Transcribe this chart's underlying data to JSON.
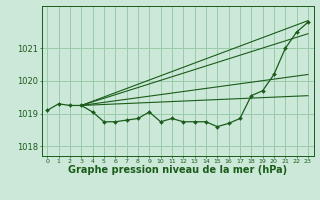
{
  "bg_color": "#cce8d8",
  "grid_color": "#99ccaa",
  "line_color": "#1a5c1a",
  "marker_color": "#1a5c1a",
  "xlabel": "Graphe pression niveau de la mer (hPa)",
  "xlabel_fontsize": 7.0,
  "xlabel_color": "#1a5c1a",
  "xlim": [
    -0.5,
    23.5
  ],
  "ylim": [
    1017.7,
    1022.3
  ],
  "yticks": [
    1018,
    1019,
    1020,
    1021
  ],
  "xtick_labels": [
    "0",
    "1",
    "2",
    "3",
    "4",
    "5",
    "6",
    "7",
    "8",
    "9",
    "10",
    "11",
    "12",
    "13",
    "14",
    "15",
    "16",
    "17",
    "18",
    "19",
    "20",
    "21",
    "22",
    "23"
  ],
  "xticks": [
    0,
    1,
    2,
    3,
    4,
    5,
    6,
    7,
    8,
    9,
    10,
    11,
    12,
    13,
    14,
    15,
    16,
    17,
    18,
    19,
    20,
    21,
    22,
    23
  ],
  "main_x": [
    0,
    1,
    2,
    3,
    4,
    5,
    6,
    7,
    8,
    9,
    10,
    11,
    12,
    13,
    14,
    15,
    16,
    17,
    18,
    19,
    20,
    21,
    22,
    23
  ],
  "main_y": [
    1019.1,
    1019.3,
    1019.25,
    1019.25,
    1019.05,
    1018.75,
    1018.75,
    1018.8,
    1018.85,
    1019.05,
    1018.75,
    1018.85,
    1018.75,
    1018.75,
    1018.75,
    1018.6,
    1018.7,
    1018.85,
    1019.55,
    1019.7,
    1020.2,
    1021.0,
    1021.5,
    1021.8
  ],
  "fan_lines": [
    {
      "x": [
        3,
        23
      ],
      "y": [
        1019.25,
        1021.85
      ]
    },
    {
      "x": [
        3,
        23
      ],
      "y": [
        1019.25,
        1021.45
      ]
    },
    {
      "x": [
        3,
        23
      ],
      "y": [
        1019.25,
        1020.2
      ]
    },
    {
      "x": [
        3,
        23
      ],
      "y": [
        1019.25,
        1019.55
      ]
    }
  ]
}
